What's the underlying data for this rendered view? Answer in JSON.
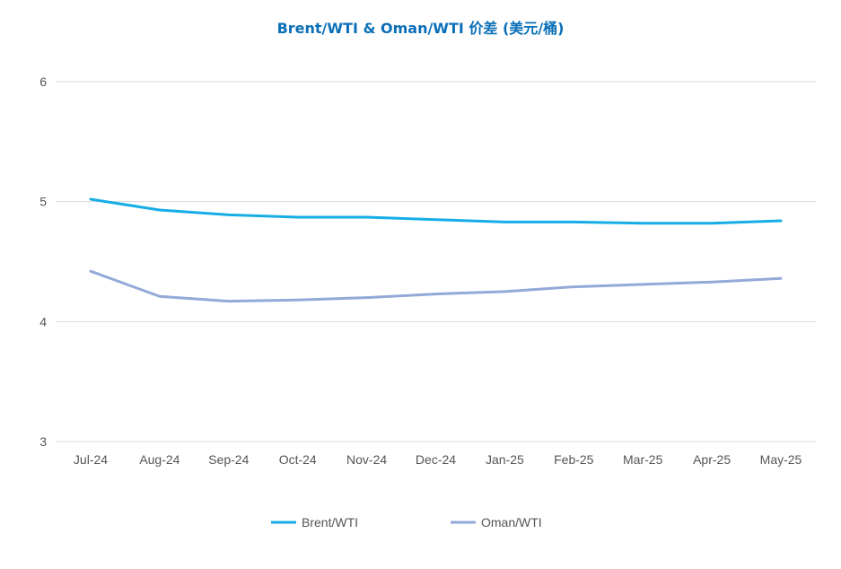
{
  "chart_data": {
    "type": "line",
    "title": "Brent/WTI & Oman/WTI 价差 (美元/桶)",
    "xlabel": "",
    "ylabel": "",
    "categories": [
      "Jul-24",
      "Aug-24",
      "Sep-24",
      "Oct-24",
      "Nov-24",
      "Dec-24",
      "Jan-25",
      "Feb-25",
      "Mar-25",
      "Apr-25",
      "May-25"
    ],
    "ylim": [
      3,
      6
    ],
    "yticks": [
      3,
      4,
      5,
      6
    ],
    "grid": true,
    "legend_position": "bottom",
    "series": [
      {
        "name": "Brent/WTI",
        "color": "#16ade6",
        "values": [
          5.02,
          4.93,
          4.89,
          4.87,
          4.87,
          4.85,
          4.83,
          4.83,
          4.82,
          4.82,
          4.84
        ]
      },
      {
        "name": "Oman/WTI",
        "color": "#93a9d8",
        "values": [
          4.42,
          4.21,
          4.17,
          4.18,
          4.2,
          4.23,
          4.25,
          4.29,
          4.31,
          4.33,
          4.36
        ]
      }
    ]
  }
}
